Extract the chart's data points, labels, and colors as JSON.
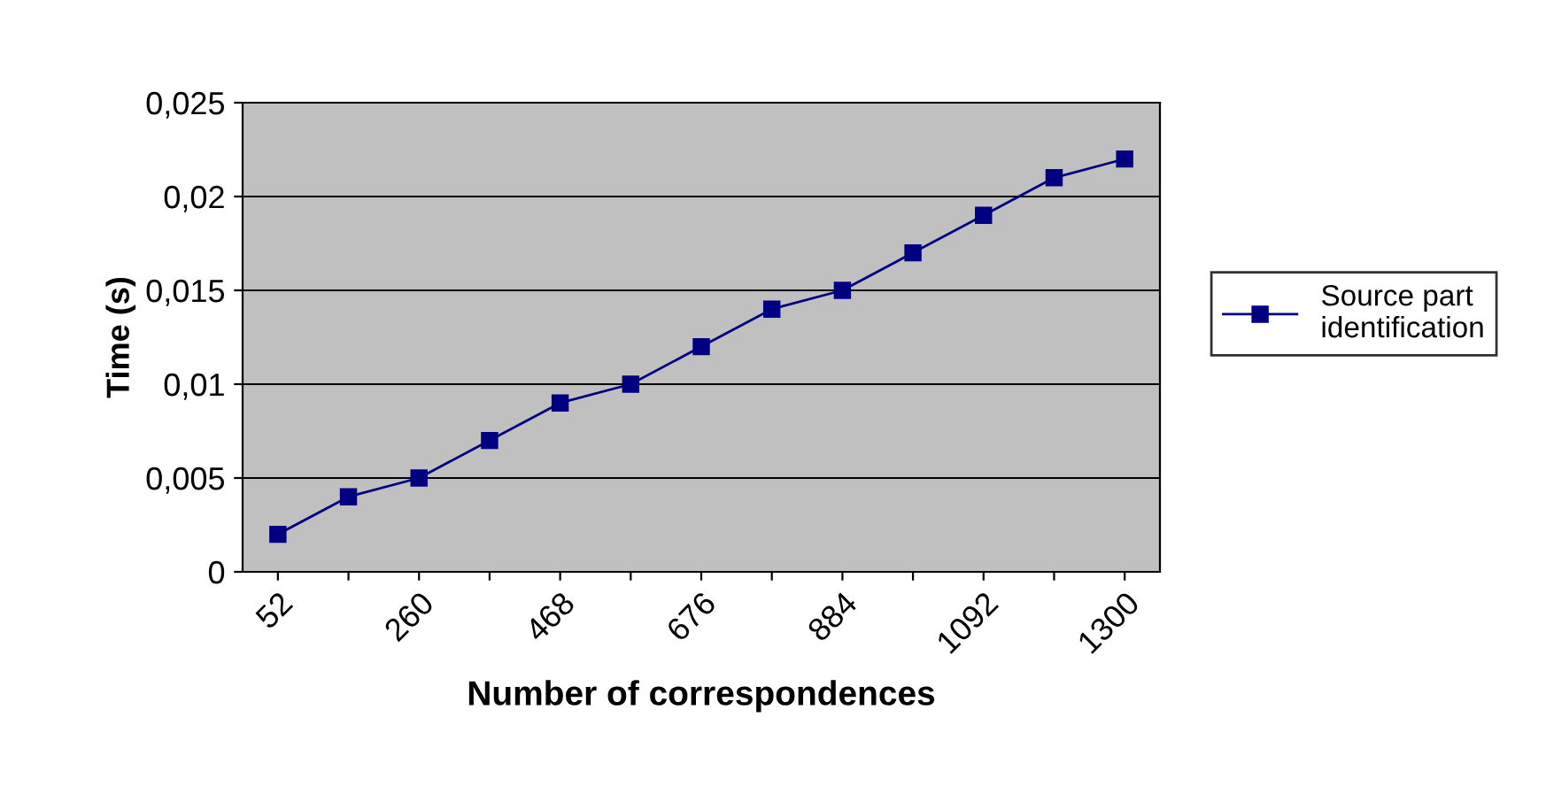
{
  "chart_data": {
    "type": "line",
    "xlabel": "Number of correspondences",
    "ylabel": "Time (s)",
    "categories": [
      "52",
      null,
      "260",
      null,
      "468",
      null,
      "676",
      null,
      "884",
      null,
      "1092",
      null,
      "1300"
    ],
    "series": [
      {
        "name": "Source part\nidentification",
        "color": "#000080",
        "values": [
          0.002,
          0.004,
          0.005,
          0.007,
          0.009,
          0.01,
          0.012,
          0.014,
          0.015,
          0.017,
          0.019,
          0.021,
          0.022
        ]
      }
    ],
    "ylim": [
      0,
      0.025
    ],
    "yticks": [
      {
        "value": 0,
        "label": "0"
      },
      {
        "value": 0.005,
        "label": "0,005"
      },
      {
        "value": 0.01,
        "label": "0,01"
      },
      {
        "value": 0.015,
        "label": "0,015"
      },
      {
        "value": 0.02,
        "label": "0,02"
      },
      {
        "value": 0.025,
        "label": "0,025"
      }
    ],
    "grid": "y",
    "legend": "right",
    "marker": "square",
    "line_style": "solid"
  }
}
